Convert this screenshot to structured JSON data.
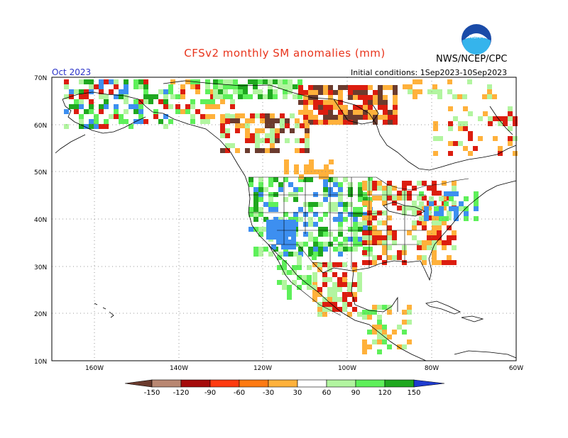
{
  "header": {
    "title": "CFSv2 monthly SM anomalies (mm)",
    "agency": "NWS/NCEP/CPC",
    "period": "Oct 2023",
    "initial_conditions": "Initial conditions: 1Sep2023-10Sep2023",
    "logo_text": "NOAA"
  },
  "axes": {
    "lat_labels": [
      "70N",
      "60N",
      "50N",
      "40N",
      "30N",
      "20N",
      "10N"
    ],
    "lon_labels": [
      "160W",
      "140W",
      "120W",
      "100W",
      "80W",
      "60W"
    ]
  },
  "colorbar": {
    "labels": [
      "-150",
      "-120",
      "-90",
      "-60",
      "-30",
      "30",
      "60",
      "90",
      "120",
      "150"
    ],
    "colors": [
      "#6b3b2e",
      "#b98772",
      "#a50c0c",
      "#dc1d0f",
      "#ff5a10",
      "#ffb13b",
      "#ffffff",
      "#b2f5a0",
      "#5ef05a",
      "#1fa81f",
      "#3d8ff0",
      "#1f3ccf"
    ]
  },
  "map": {
    "colors": {
      "land_outline": "#000000",
      "grid": "#7a7a7a",
      "drought_strong": "#6b3b2e",
      "drought_red": "#dc1d0f",
      "drought_orange": "#ffb13b",
      "wet_light": "#b2f5a0",
      "wet_green": "#5ef05a",
      "wet_dark": "#1fa81f",
      "wet_blue": "#3d8ff0"
    }
  }
}
